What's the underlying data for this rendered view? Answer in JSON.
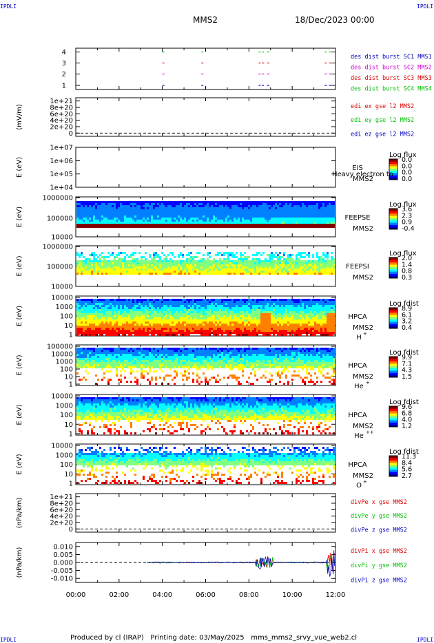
{
  "header": {
    "corner_tl": "IPDLI",
    "corner_tr": "IPDLI",
    "corner_bl": "IPDLI",
    "corner_br": "IPDLI",
    "spacecraft": "MMS2",
    "date": "18/Dec/2023 00:00"
  },
  "footer": {
    "produced_by": "Produced by cl (IRAP)",
    "printing_date": "Printing date: 03/May/2025",
    "script": "mms_mms2_srvy_vue_web2.cl"
  },
  "colors": {
    "blue": "#0000c0",
    "magenta": "#d000d0",
    "red": "#e00000",
    "green": "#00c000",
    "colorbar": [
      "#000080",
      "#0000ff",
      "#0080ff",
      "#00ffff",
      "#80ff80",
      "#ffff00",
      "#ff8000",
      "#ff0000",
      "#800000"
    ]
  },
  "chart_data": [
    {
      "id": "burst",
      "type": "scatter",
      "ylim": [
        0.5,
        4.5
      ],
      "yticks": [
        "1",
        "2",
        "3",
        "4"
      ],
      "legend": [
        {
          "text": "des dist burst SC1 MMS1",
          "color": "#0000c0"
        },
        {
          "text": "des dist burst SC2 MMS2",
          "color": "#d000d0"
        },
        {
          "text": "des dist burst SC3 MMS3",
          "color": "#e00000"
        },
        {
          "text": "des dist burst SC4 MMS4",
          "color": "#00c000"
        }
      ],
      "x_hours": [
        4.0,
        5.8,
        8.45,
        8.6,
        8.85,
        11.5,
        11.7
      ],
      "rows": [
        1,
        2,
        3,
        4
      ]
    },
    {
      "id": "edi_e",
      "type": "line",
      "ylabel": "(mV/m)",
      "ylim": [
        -1e+20,
        1.1e+21
      ],
      "yticks": [
        "0",
        "2e+20",
        "4e+20",
        "6e+20",
        "8e+20",
        "1e+21"
      ],
      "ytick_values": [
        0,
        2e+20,
        4e+20,
        6e+20,
        8e+20,
        1e+21
      ],
      "legend": [
        {
          "text": "edi ex gse l2 MMS2",
          "color": "#e00000"
        },
        {
          "text": "edi ey gse l2 MMS2",
          "color": "#00c000"
        },
        {
          "text": "edi ez gse l2 MMS2",
          "color": "#0000c0"
        }
      ]
    },
    {
      "id": "eis",
      "type": "heatmap",
      "ylabel": "E (eV)",
      "yticks": [
        "1e+04",
        "1e+05",
        "1e+06",
        "1e+07"
      ],
      "right_labels": [
        "EIS",
        "MMS2"
      ],
      "overlay_text": "Heavy electron to",
      "colorbar_title": "Log flux",
      "colorbar_ticks": [
        "0.0",
        "0.0",
        "0.0",
        "0.0"
      ]
    },
    {
      "id": "feepse",
      "type": "heatmap",
      "ylabel": "E (eV)",
      "yticks": [
        "10000",
        "100000",
        "1000000"
      ],
      "right_labels": [
        "FEEPSE",
        "MMS2"
      ],
      "colorbar_title": "Log flux",
      "colorbar_ticks": [
        "3.6",
        "2.3",
        "0.9",
        "-0.4"
      ]
    },
    {
      "id": "feepsi",
      "type": "heatmap",
      "ylabel": "E (eV)",
      "yticks": [
        "10000",
        "100000",
        "1000000"
      ],
      "right_labels": [
        "FEEPSI",
        "MMS2"
      ],
      "colorbar_title": "Log flux",
      "colorbar_ticks": [
        "2.0",
        "1.4",
        "0.8",
        "0.3"
      ]
    },
    {
      "id": "hpca_h",
      "type": "heatmap",
      "ylabel": "E (eV)",
      "yticks": [
        "1",
        "10",
        "100",
        "1000",
        "10000"
      ],
      "right_labels": [
        "HPCA",
        "MMS2"
      ],
      "species": "H",
      "species_charge": "+",
      "colorbar_title": "Log fdist",
      "colorbar_ticks": [
        "8.9",
        "6.1",
        "3.2",
        "0.4"
      ]
    },
    {
      "id": "hpca_he",
      "type": "heatmap",
      "ylabel": "E (eV)",
      "yticks": [
        "1",
        "10",
        "100",
        "1000",
        "10000",
        "100000"
      ],
      "right_labels": [
        "HPCA",
        "MMS2"
      ],
      "species": "He",
      "species_charge": "+",
      "colorbar_title": "Log fdist",
      "colorbar_ticks": [
        "9.9",
        "7.1",
        "4.3",
        "1.5"
      ]
    },
    {
      "id": "hpca_hepp",
      "type": "heatmap",
      "ylabel": "E (eV)",
      "yticks": [
        "1",
        "10",
        "100",
        "1000",
        "10000"
      ],
      "right_labels": [
        "HPCA",
        "MMS2"
      ],
      "species": "He",
      "species_charge": "++",
      "colorbar_title": "Log fdist",
      "colorbar_ticks": [
        "9.6",
        "6.8",
        "4.0",
        "1.2"
      ]
    },
    {
      "id": "hpca_o",
      "type": "heatmap",
      "ylabel": "E (eV)",
      "yticks": [
        "1",
        "10",
        "100",
        "1000",
        "10000"
      ],
      "right_labels": [
        "HPCA",
        "MMS2"
      ],
      "species": "O",
      "species_charge": "+",
      "colorbar_title": "Log fdist",
      "colorbar_ticks": [
        "11.3",
        "8.4",
        "5.6",
        "2.7"
      ]
    },
    {
      "id": "divpe",
      "type": "line",
      "ylabel": "(nPa/km)",
      "ylim": [
        -1e+20,
        1.1e+21
      ],
      "yticks": [
        "0",
        "2e+20",
        "4e+20",
        "6e+20",
        "8e+20",
        "1e+21"
      ],
      "ytick_values": [
        0,
        2e+20,
        4e+20,
        6e+20,
        8e+20,
        1e+21
      ],
      "legend": [
        {
          "text": "divPe x gse MMS2",
          "color": "#e00000"
        },
        {
          "text": "divPe y gse MMS2",
          "color": "#00c000"
        },
        {
          "text": "divPe z gse MMS2",
          "color": "#0000c0"
        }
      ]
    },
    {
      "id": "divpi",
      "type": "line",
      "ylabel": "(nPa/km)",
      "ylim": [
        -0.0125,
        0.0125
      ],
      "yticks": [
        "-0.010",
        "-0.005",
        "0.000",
        "0.005",
        "0.010"
      ],
      "ytick_values": [
        -0.01,
        -0.005,
        0,
        0.005,
        0.01
      ],
      "xlabels": [
        "00:00",
        "02:00",
        "04:00",
        "06:00",
        "08:00",
        "10:00",
        "12:00"
      ],
      "x_range_hours": [
        0,
        12
      ],
      "legend": [
        {
          "text": "divPi x gse MMS2",
          "color": "#e00000"
        },
        {
          "text": "divPi y gse MMS2",
          "color": "#00c000"
        },
        {
          "text": "divPi z gse MMS2",
          "color": "#0000c0"
        }
      ]
    }
  ]
}
